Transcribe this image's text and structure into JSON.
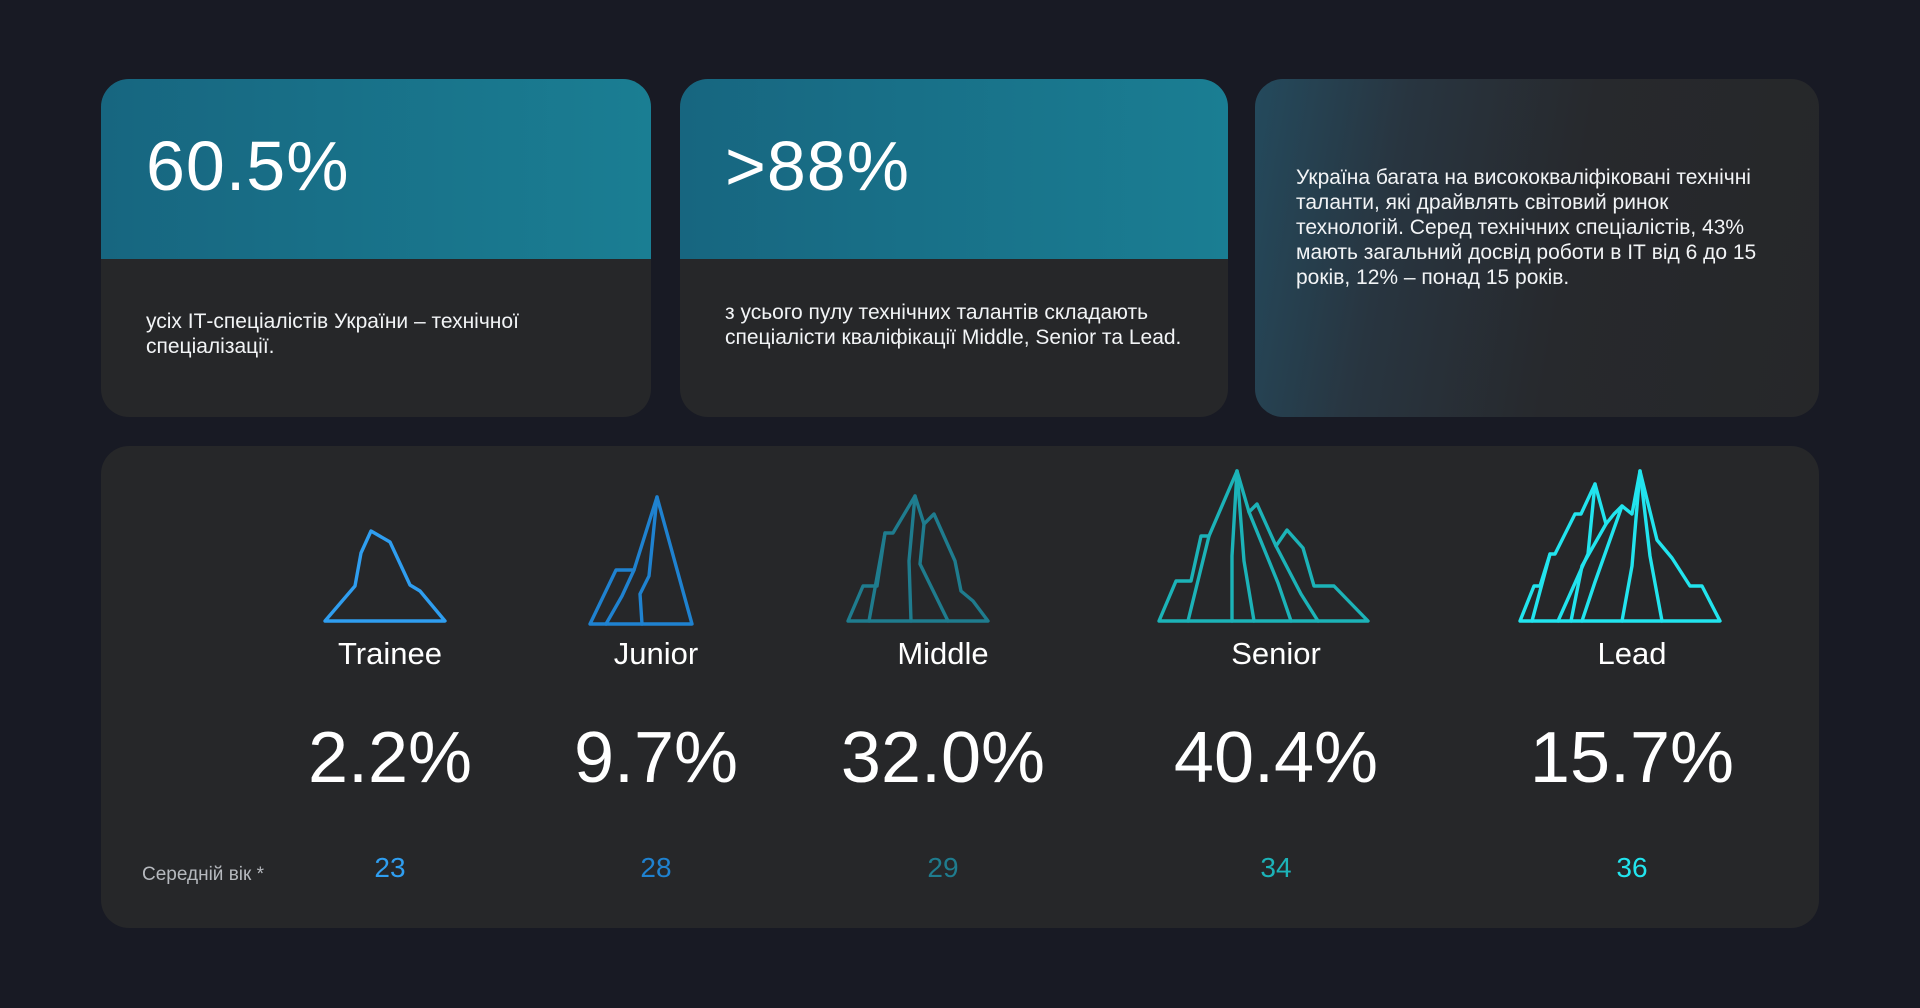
{
  "cards": [
    {
      "stat": "60.5%",
      "description": "усіх ІТ-спеціалістів України – технічної спеціалізації."
    },
    {
      "stat": ">88%",
      "description": "з усього пулу технічних талантів складають спеціалісти кваліфікації Middle, Senior та Lead."
    },
    {
      "description": "Україна багата на висококваліфіковані технічні таланти, які драйвлять світовий ринок технологій. Серед технічних спеціалістів, 43% мають загальний досвід роботи в ІТ від 6 до 15  років, 12% – понад 15 років."
    }
  ],
  "levels_panel": {
    "age_label": "Середній вік *",
    "levels": [
      {
        "name": "Trainee",
        "share": "2.2%",
        "age": "23",
        "color": "#2f9ef0",
        "icon": "small-mountain-icon"
      },
      {
        "name": "Junior",
        "share": "9.7%",
        "age": "28",
        "color": "#1f82d0",
        "icon": "mountain-icon"
      },
      {
        "name": "Middle",
        "share": "32.0%",
        "age": "29",
        "color": "#1f7c8e",
        "icon": "mountain-range-icon"
      },
      {
        "name": "Senior",
        "share": "40.4%",
        "age": "34",
        "color": "#1cb3b8",
        "icon": "large-mountain-range-icon"
      },
      {
        "name": "Lead",
        "share": "15.7%",
        "age": "36",
        "color": "#22e4ee",
        "icon": "tall-mountain-range-icon"
      }
    ]
  }
}
